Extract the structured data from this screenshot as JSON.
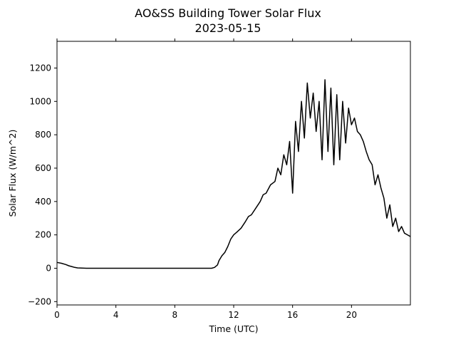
{
  "chart_data": {
    "type": "line",
    "title": "AO&SS Building Tower Solar Flux",
    "subtitle": "2023-05-15",
    "xlabel": "Time (UTC)",
    "ylabel": "Solar Flux (W/m^2)",
    "xlim": [
      0,
      24
    ],
    "ylim": [
      -220,
      1360
    ],
    "x_ticks": [
      0,
      4,
      8,
      12,
      16,
      20
    ],
    "x_tick_labels": [
      "0",
      "4",
      "8",
      "12",
      "16",
      "20"
    ],
    "y_ticks": [
      -200,
      0,
      200,
      400,
      600,
      800,
      1000,
      1200
    ],
    "y_tick_labels": [
      "−200",
      "0",
      "200",
      "400",
      "600",
      "800",
      "1000",
      "1200"
    ],
    "grid": false,
    "line_color": "#000000",
    "series": [
      {
        "x": [
          0,
          0.3,
          0.6,
          0.8,
          1.0,
          1.2,
          1.4,
          2,
          4,
          6,
          8,
          10,
          10.5,
          10.7,
          10.9,
          11.0,
          11.2,
          11.4,
          11.6,
          11.8,
          12.0,
          12.2,
          12.5,
          12.8,
          13.0,
          13.2,
          13.5,
          13.8,
          14.0,
          14.2,
          14.5,
          14.8,
          15.0,
          15.2,
          15.4,
          15.6,
          15.8,
          16.0,
          16.2,
          16.4,
          16.6,
          16.8,
          17.0,
          17.2,
          17.4,
          17.6,
          17.8,
          18.0,
          18.2,
          18.4,
          18.6,
          18.8,
          19.0,
          19.2,
          19.4,
          19.6,
          19.8,
          20.0,
          20.2,
          20.4,
          20.6,
          20.8,
          21.0,
          21.2,
          21.4,
          21.6,
          21.8,
          22.0,
          22.2,
          22.4,
          22.6,
          22.8,
          23.0,
          23.2,
          23.4,
          23.6,
          23.8,
          24.0
        ],
        "values": [
          35,
          30,
          22,
          15,
          10,
          5,
          2,
          0,
          0,
          0,
          0,
          0,
          0,
          5,
          20,
          45,
          75,
          95,
          130,
          175,
          200,
          215,
          240,
          280,
          310,
          320,
          360,
          400,
          440,
          450,
          500,
          520,
          600,
          560,
          680,
          620,
          760,
          450,
          880,
          700,
          1000,
          780,
          1110,
          900,
          1050,
          820,
          1000,
          650,
          1130,
          700,
          1080,
          620,
          1040,
          650,
          1000,
          750,
          960,
          860,
          900,
          820,
          800,
          760,
          700,
          650,
          620,
          500,
          560,
          480,
          420,
          300,
          380,
          250,
          300,
          220,
          250,
          210,
          200,
          190
        ]
      }
    ]
  }
}
